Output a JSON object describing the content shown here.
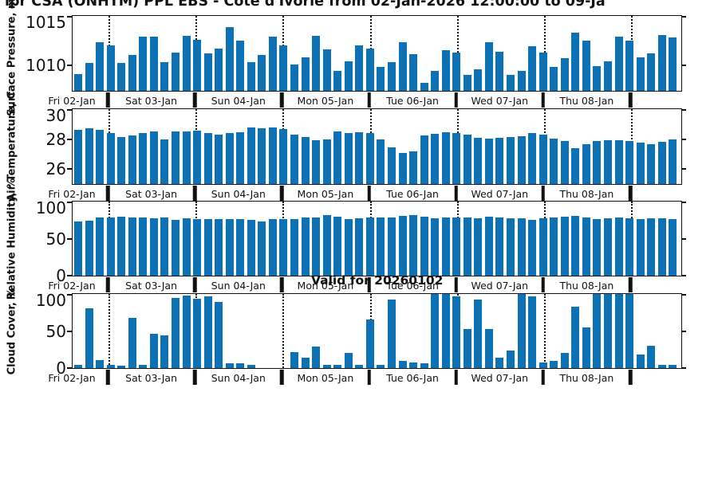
{
  "figure": {
    "title": "ipr CSA (ONHTM) PPL EBS  - Cote d'Ivorie from 02-Jan-2026 12:00:00 to 09-Ja",
    "annotation": "Valid for 20260102",
    "bar_color": "#0d72b5",
    "axis_color": "#111111"
  },
  "x_axis": {
    "day_labels": [
      "Fri 02-Jan",
      "Sat 03-Jan",
      "Sun 04-Jan",
      "Mon 05-Jan",
      "Tue 06-Jan",
      "Wed 07-Jan",
      "Thu 08-Jan"
    ],
    "bars_total": 56,
    "bars_first_day": 4,
    "bars_per_day": 8
  },
  "chart_data": [
    {
      "type": "bar",
      "ylabel": "Surface Pressure, mb",
      "ylim": [
        1007.4,
        1015
      ],
      "yticks": [
        1010,
        1015
      ],
      "values": [
        1009.1,
        1010.2,
        1012.3,
        1012.0,
        1010.2,
        1011.0,
        1012.9,
        1012.9,
        1010.3,
        1011.3,
        1013.0,
        1012.6,
        1011.2,
        1011.7,
        1013.9,
        1012.5,
        1010.3,
        1011.0,
        1012.9,
        1012.0,
        1010.1,
        1010.8,
        1013.0,
        1011.6,
        1009.4,
        1010.4,
        1012.0,
        1011.7,
        1009.8,
        1010.3,
        1012.3,
        1011.1,
        1008.2,
        1009.4,
        1011.5,
        1011.3,
        1009.0,
        1009.6,
        1012.3,
        1011.4,
        1009.0,
        1009.4,
        1011.9,
        1011.3,
        1009.8,
        1010.7,
        1013.3,
        1012.5,
        1009.9,
        1010.4,
        1012.9,
        1012.5,
        1010.8,
        1011.2,
        1013.1,
        1012.8
      ]
    },
    {
      "type": "bar",
      "ylabel": "Air Temperature, C",
      "ylim": [
        25,
        30
      ],
      "yticks": [
        26,
        28,
        30
      ],
      "values": [
        28.6,
        28.7,
        28.6,
        28.4,
        28.15,
        28.25,
        28.4,
        28.5,
        28.0,
        28.5,
        28.5,
        28.55,
        28.4,
        28.3,
        28.4,
        28.45,
        28.8,
        28.75,
        28.8,
        28.65,
        28.3,
        28.15,
        27.9,
        28.0,
        28.5,
        28.4,
        28.45,
        28.4,
        28.0,
        27.45,
        27.1,
        27.2,
        28.25,
        28.35,
        28.45,
        28.4,
        28.3,
        28.1,
        28.05,
        28.1,
        28.15,
        28.2,
        28.4,
        28.3,
        28.05,
        27.85,
        27.4,
        27.65,
        27.85,
        27.9,
        27.95,
        27.85,
        27.75,
        27.65,
        27.8,
        28.0
      ]
    },
    {
      "type": "bar",
      "ylabel": "Relative Humidity, %",
      "ylim": [
        0,
        100
      ],
      "yticks": [
        0,
        50,
        100
      ],
      "values": [
        73,
        74,
        78,
        78,
        80,
        79,
        78,
        77,
        78,
        75,
        77,
        76,
        76,
        76,
        76,
        76,
        75,
        73,
        76,
        76,
        76,
        79,
        79,
        82,
        80,
        76,
        77,
        78,
        78,
        78,
        81,
        82,
        80,
        77,
        78,
        78,
        79,
        77,
        80,
        78,
        77,
        77,
        75,
        77,
        78,
        80,
        81,
        79,
        76,
        77,
        78,
        77,
        76,
        77,
        77,
        76
      ]
    },
    {
      "type": "bar",
      "ylabel": "Cloud Cover, %",
      "ylim": [
        0,
        100
      ],
      "yticks": [
        0,
        50,
        100
      ],
      "values": [
        4,
        81,
        11,
        4,
        3,
        68,
        4,
        46,
        44,
        95,
        98,
        94,
        97,
        89,
        7,
        7,
        4,
        0,
        0,
        0,
        21,
        14,
        29,
        4,
        4,
        20,
        4,
        66,
        4,
        93,
        10,
        8,
        7,
        100,
        100,
        97,
        53,
        92,
        53,
        14,
        24,
        100,
        97,
        8,
        10,
        20,
        83,
        55,
        100,
        100,
        100,
        100,
        18,
        30,
        4,
        4
      ]
    }
  ]
}
